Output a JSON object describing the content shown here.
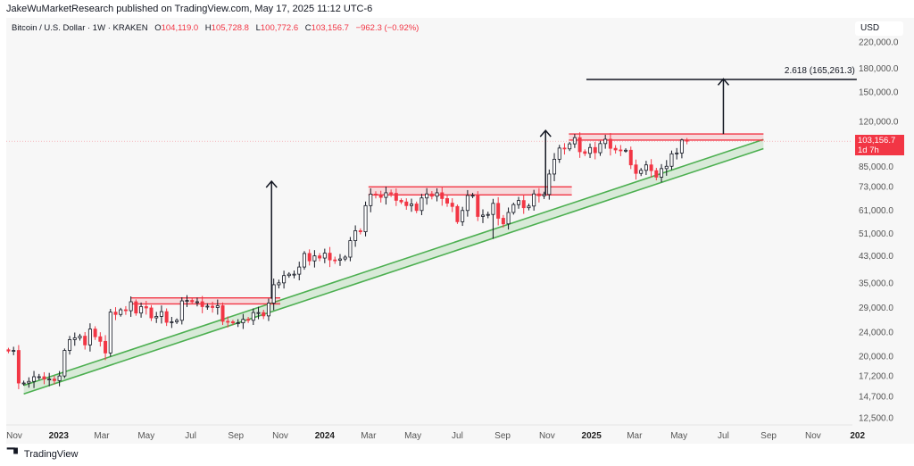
{
  "publisher": "JakeWuMarketResearch published on TradingView.com, May 17, 2025 11:12 UTC-6",
  "legend": {
    "symbol": "Bitcoin / U.S. Dollar · 1W · KRAKEN",
    "o_label": "O",
    "o": "104,119.0",
    "h_label": "H",
    "h": "105,728.8",
    "l_label": "L",
    "l": "100,772.6",
    "c_label": "C",
    "c": "103,156.7",
    "change": "−962.3 (−0.92%)"
  },
  "currency": "USD",
  "price_label": {
    "price": "103,156.7",
    "countdown": "1d 7h"
  },
  "footer": {
    "brand": "TradingView",
    "logo_text": "TV"
  },
  "colors": {
    "up": "#ffffff",
    "up_border": "#131722",
    "down": "#f23645",
    "resistance": "#f23645",
    "channel": "#4caf50",
    "background": "#f7f7f7"
  },
  "chart_data": {
    "type": "candlestick",
    "interval": "1W",
    "scale": "log",
    "ylim": [
      12500,
      220000
    ],
    "y_ticks": [
      220000,
      180000,
      150000,
      120000,
      85000,
      73000,
      61000,
      51000,
      43000,
      35000,
      29000,
      24000,
      20000,
      17200,
      14700,
      12500
    ],
    "y_tick_labels": [
      "220,000.0",
      "180,000.0",
      "150,000.0",
      "120,000.0",
      "85,000.0",
      "73,000.0",
      "61,000.0",
      "51,000.0",
      "43,000.0",
      "35,000.0",
      "29,000.0",
      "24,000.0",
      "20,000.0",
      "17,200.0",
      "14,700.0",
      "12,500.0"
    ],
    "x_ticks": [
      {
        "label": "Nov",
        "date": "2022-11-01",
        "bold": false
      },
      {
        "label": "2023",
        "date": "2023-01-01",
        "bold": true
      },
      {
        "label": "Mar",
        "date": "2023-03-01",
        "bold": false
      },
      {
        "label": "May",
        "date": "2023-05-01",
        "bold": false
      },
      {
        "label": "Jul",
        "date": "2023-07-01",
        "bold": false
      },
      {
        "label": "Sep",
        "date": "2023-09-01",
        "bold": false
      },
      {
        "label": "Nov",
        "date": "2023-11-01",
        "bold": false
      },
      {
        "label": "2024",
        "date": "2024-01-01",
        "bold": true
      },
      {
        "label": "Mar",
        "date": "2024-03-01",
        "bold": false
      },
      {
        "label": "May",
        "date": "2024-05-01",
        "bold": false
      },
      {
        "label": "Jul",
        "date": "2024-07-01",
        "bold": false
      },
      {
        "label": "Sep",
        "date": "2024-09-01",
        "bold": false
      },
      {
        "label": "Nov",
        "date": "2024-11-01",
        "bold": false
      },
      {
        "label": "2025",
        "date": "2025-01-01",
        "bold": true
      },
      {
        "label": "Mar",
        "date": "2025-03-01",
        "bold": false
      },
      {
        "label": "May",
        "date": "2025-05-01",
        "bold": false
      },
      {
        "label": "Jul",
        "date": "2025-07-01",
        "bold": false
      },
      {
        "label": "Sep",
        "date": "2025-09-01",
        "bold": false
      },
      {
        "label": "Nov",
        "date": "2025-11-01",
        "bold": false
      },
      {
        "label": "202",
        "date": "2026-01-01",
        "bold": true
      }
    ],
    "weekly_closes": [
      20800,
      20900,
      16300,
      16300,
      16500,
      17100,
      17100,
      16800,
      16800,
      16600,
      17200,
      20900,
      22700,
      23000,
      23300,
      21800,
      24600,
      23200,
      22400,
      20500,
      28000,
      27500,
      28500,
      28300,
      30300,
      27800,
      29200,
      28900,
      26800,
      27100,
      28100,
      25900,
      26000,
      26300,
      30500,
      30600,
      30300,
      30300,
      29200,
      29300,
      29000,
      29400,
      26100,
      26000,
      25800,
      25800,
      26500,
      26300,
      27900,
      27900,
      27200,
      30000,
      34500,
      35000,
      37000,
      37400,
      37400,
      39500,
      43800,
      41400,
      43000,
      42300,
      43900,
      41700,
      41600,
      42000,
      42600,
      48300,
      52100,
      51700,
      63100,
      68900,
      68300,
      67200,
      69600,
      69300,
      65700,
      64900,
      63100,
      63900,
      60800,
      66900,
      69000,
      67800,
      69600,
      66600,
      64300,
      62700,
      55800,
      60800,
      68200,
      68300,
      58100,
      58700,
      59000,
      64200,
      57300,
      54900,
      59900,
      63600,
      65600,
      62100,
      62900,
      69000,
      68000,
      68700,
      80300,
      89900,
      97900,
      97300,
      101100,
      106000,
      95200,
      94000,
      98300,
      94500,
      101300,
      104700,
      97700,
      96500,
      96100,
      96300,
      86100,
      80700,
      82600,
      86100,
      82400,
      78400,
      83700,
      85200,
      93700,
      94300,
      104119,
      103156.7
    ],
    "last_candle": {
      "open": 104119.0,
      "high": 105728.8,
      "low": 100772.6,
      "close": 103156.7
    },
    "annotations": {
      "resistance_zones": [
        {
          "from": "2023-04-10",
          "to": "2023-11-01",
          "low": 29800,
          "high": 31200
        },
        {
          "from": "2024-03-01",
          "to": "2024-12-05",
          "low": 68500,
          "high": 72800
        },
        {
          "from": "2024-12-01",
          "to": "2025-08-25",
          "low": 104000,
          "high": 109000
        }
      ],
      "channel": {
        "from": "2022-11-14",
        "to": "2025-08-25",
        "upper_start": 16000,
        "upper_end": 104500,
        "lower_start": 15000,
        "lower_end": 97500
      },
      "arrows": [
        {
          "date": "2023-10-20",
          "from": 31000,
          "to": 76000
        },
        {
          "date": "2024-10-30",
          "from": 68500,
          "to": 112000
        },
        {
          "date": "2025-07-01",
          "from": 109000,
          "to": 166000
        }
      ],
      "fib_target": {
        "level": "2.618",
        "price": 165261.3,
        "label": "2.618 (165,261.3)",
        "from": "2024-12-25",
        "to": "2025-12-31"
      }
    }
  }
}
